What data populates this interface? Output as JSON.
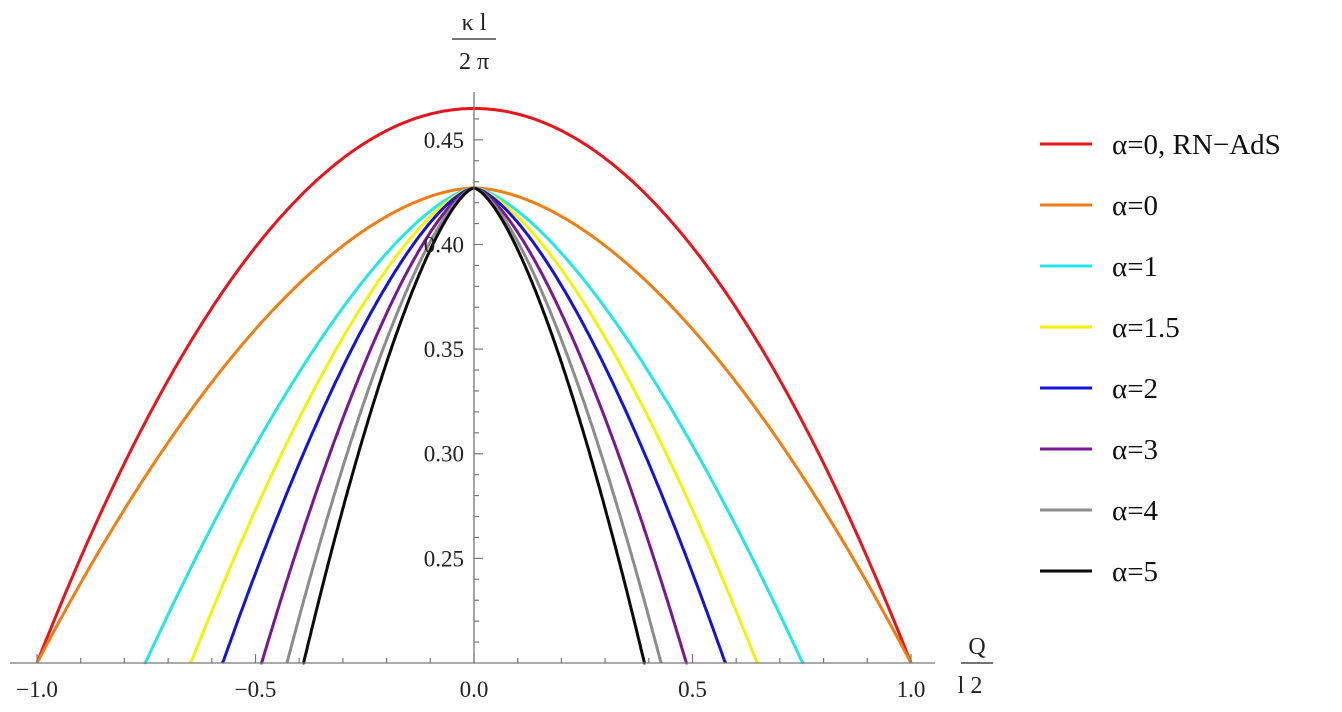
{
  "chart_data": {
    "type": "line",
    "title": "",
    "xlabel": {
      "numerator": "Q",
      "denominator": "l 2"
    },
    "ylabel": {
      "numerator": "κ l",
      "denominator": "2 π"
    },
    "xlim": [
      -1.0,
      1.0
    ],
    "ylim": [
      0.2,
      0.47
    ],
    "x_ticks": [
      {
        "value": -1.0,
        "label": "−1.0"
      },
      {
        "value": -0.5,
        "label": "−0.5"
      },
      {
        "value": 0.0,
        "label": "0.0"
      },
      {
        "value": 0.5,
        "label": "0.5"
      },
      {
        "value": 1.0,
        "label": "1.0"
      }
    ],
    "y_ticks": [
      {
        "value": 0.25,
        "label": "0.25"
      },
      {
        "value": 0.3,
        "label": "0.30"
      },
      {
        "value": 0.35,
        "label": "0.35"
      },
      {
        "value": 0.4,
        "label": "0.40"
      },
      {
        "value": 0.45,
        "label": "0.45"
      }
    ],
    "grid": false,
    "legend_position": "right",
    "series": [
      {
        "name": "α=0, RN−AdS",
        "color": "#e8141c",
        "peak": 0.465,
        "width": 1.0,
        "exponent": 2.0,
        "domain": [
          -1.0,
          1.0
        ]
      },
      {
        "name": "α=0",
        "color": "#f07e12",
        "peak": 0.427,
        "width": 1.0,
        "exponent": 1.75,
        "domain": [
          -1.0,
          1.0
        ]
      },
      {
        "name": "α=1",
        "color": "#24e6ea",
        "peak": 0.427,
        "width": 0.752,
        "exponent": 1.5,
        "domain": [
          -0.93,
          0.93
        ]
      },
      {
        "name": "α=1.5",
        "color": "#f4f20a",
        "peak": 0.427,
        "width": 0.648,
        "exponent": 1.5,
        "domain": [
          -0.85,
          0.85
        ]
      },
      {
        "name": "α=2",
        "color": "#1414d8",
        "peak": 0.427,
        "width": 0.575,
        "exponent": 1.5,
        "domain": [
          -0.75,
          0.75
        ]
      },
      {
        "name": "α=3",
        "color": "#7a1894",
        "peak": 0.427,
        "width": 0.486,
        "exponent": 1.5,
        "domain": [
          -0.65,
          0.65
        ]
      },
      {
        "name": "α=4",
        "color": "#8c8c8c",
        "peak": 0.427,
        "width": 0.428,
        "exponent": 1.5,
        "domain": [
          -0.55,
          0.55
        ]
      },
      {
        "name": "α=5",
        "color": "#0a0a0a",
        "peak": 0.427,
        "width": 0.39,
        "exponent": 1.5,
        "domain": [
          -0.5,
          0.5
        ]
      }
    ]
  }
}
